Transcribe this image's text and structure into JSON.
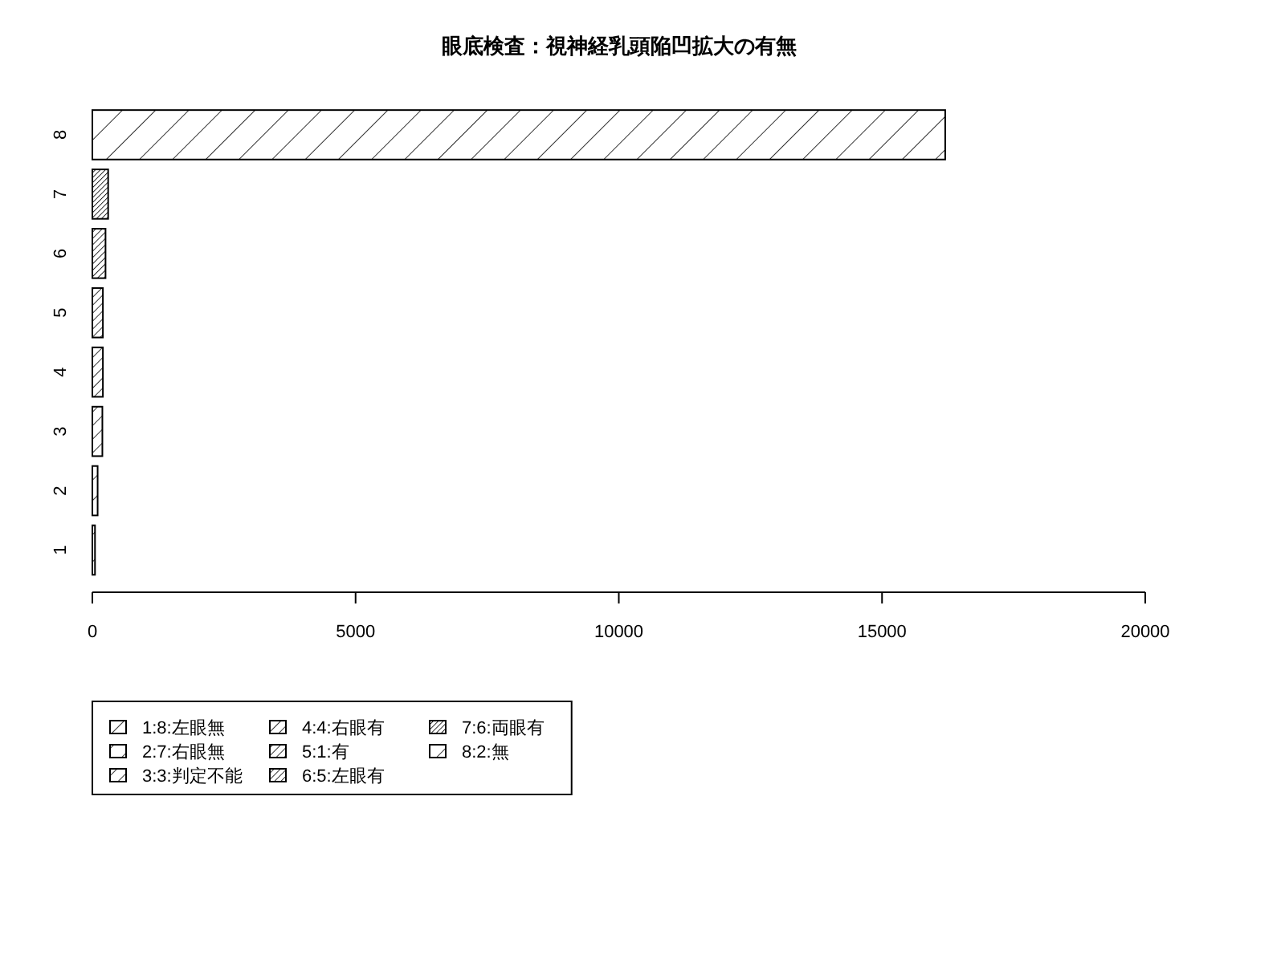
{
  "chart_data": {
    "type": "bar",
    "orientation": "horizontal",
    "stacked": true,
    "title": "眼底検査：視神経乳頭陥凹拡大の有無",
    "categories": [
      "8",
      "7",
      "6",
      "5",
      "4",
      "3",
      "2",
      "1"
    ],
    "series": [
      {
        "name": "1:8:左眼無",
        "color": "#000000",
        "values": [
          null,
          null,
          null,
          null,
          null,
          null,
          null,
          50
        ]
      },
      {
        "name": "2:7:右眼無",
        "color": "#000000",
        "values": [
          null,
          null,
          null,
          null,
          null,
          null,
          100,
          null
        ]
      },
      {
        "name": "3:3:判定不能",
        "color": "#000000",
        "values": [
          null,
          null,
          null,
          null,
          null,
          190,
          null,
          null
        ]
      },
      {
        "name": "4:4:右眼有",
        "color": "#000000",
        "values": [
          null,
          null,
          null,
          null,
          200,
          null,
          null,
          null
        ]
      },
      {
        "name": "5:1:有",
        "color": "#000000",
        "values": [
          null,
          null,
          null,
          200,
          null,
          null,
          null,
          null
        ]
      },
      {
        "name": "6:5:左眼有",
        "color": "#000000",
        "values": [
          null,
          null,
          250,
          null,
          null,
          null,
          null,
          null
        ]
      },
      {
        "name": "7:6:両眼有",
        "color": "#000000",
        "values": [
          null,
          300,
          null,
          null,
          null,
          null,
          null,
          null
        ]
      },
      {
        "name": "8:2:無",
        "color": "#000000",
        "values": [
          16200,
          null,
          null,
          null,
          null,
          null,
          null,
          null
        ]
      }
    ],
    "xlim": [
      0,
      20000
    ],
    "xticks": [
      0,
      5000,
      10000,
      15000,
      20000
    ],
    "legend": "bottom left"
  }
}
